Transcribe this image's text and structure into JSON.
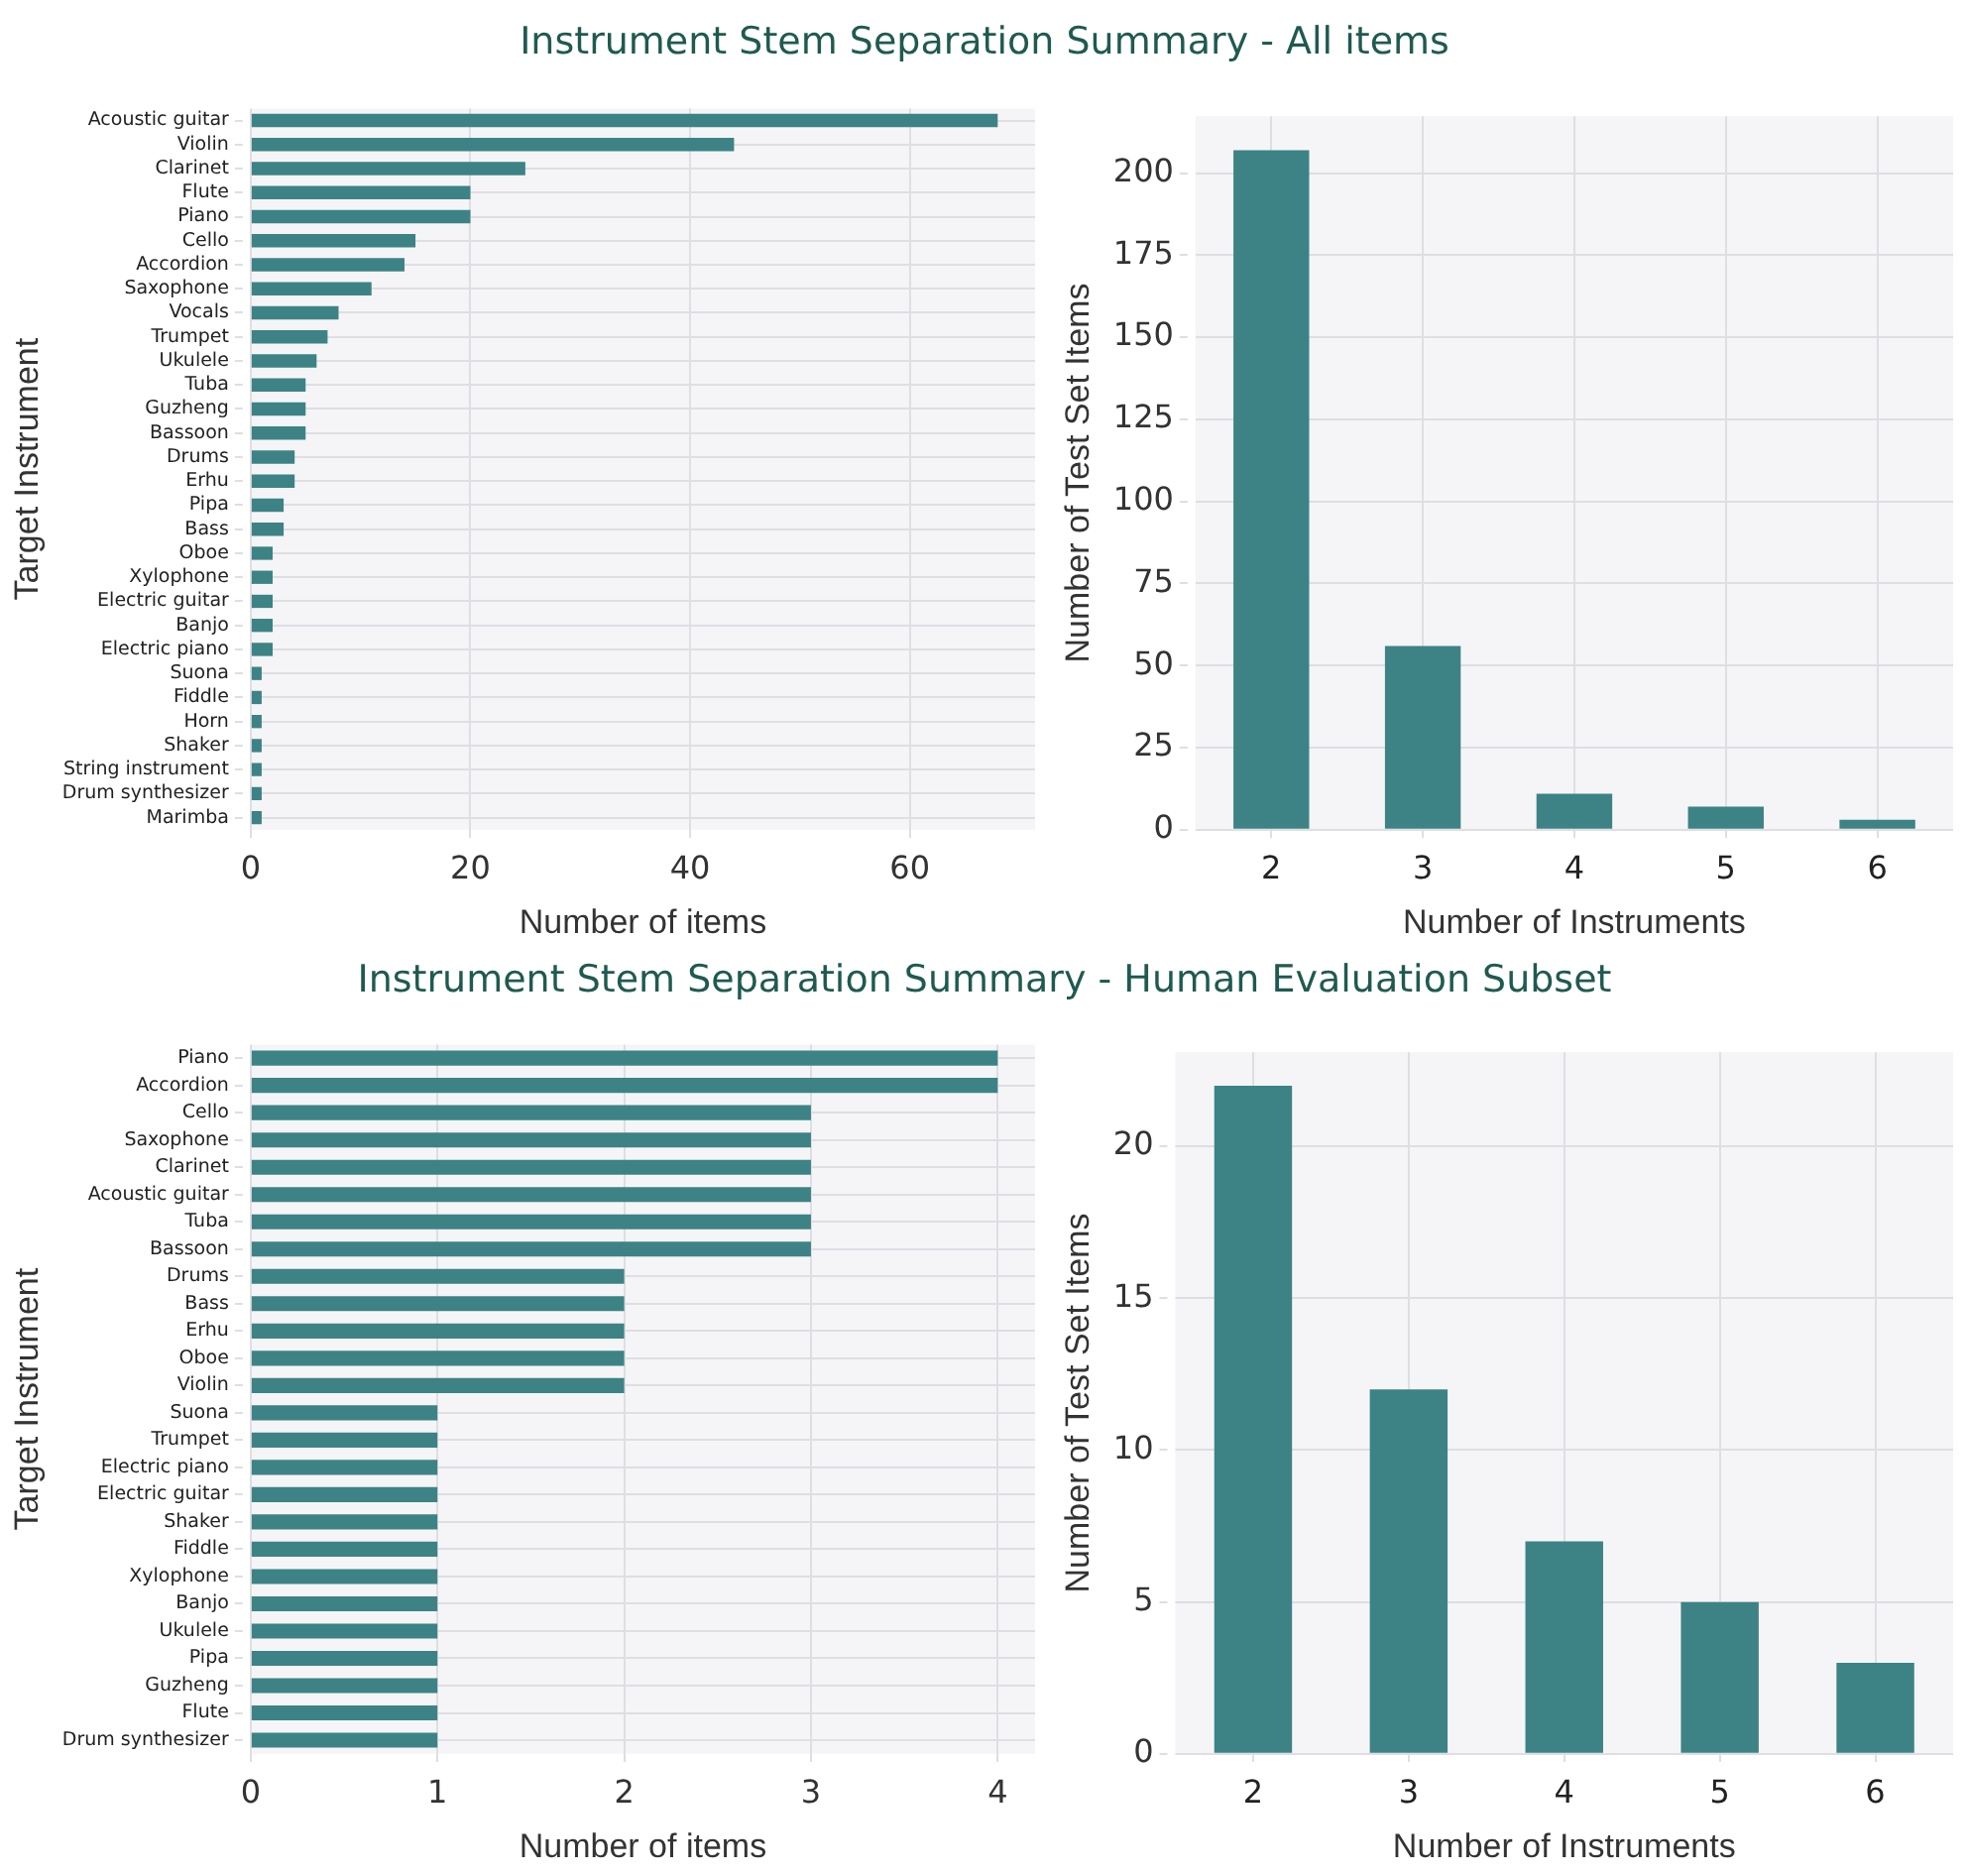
{
  "chart_data": [
    {
      "type": "bar",
      "orientation": "horizontal",
      "title": "Instrument Stem Separation Summary - All items",
      "xlabel": "Number of items",
      "ylabel": "Target Instrument",
      "categories": [
        "Acoustic guitar",
        "Violin",
        "Clarinet",
        "Flute",
        "Piano",
        "Cello",
        "Accordion",
        "Saxophone",
        "Vocals",
        "Trumpet",
        "Ukulele",
        "Tuba",
        "Guzheng",
        "Bassoon",
        "Drums",
        "Erhu",
        "Pipa",
        "Bass",
        "Oboe",
        "Xylophone",
        "Electric guitar",
        "Banjo",
        "Electric piano",
        "Suona",
        "Fiddle",
        "Horn",
        "Shaker",
        "String instrument",
        "Drum synthesizer",
        "Marimba"
      ],
      "values": [
        68,
        44,
        25,
        20,
        20,
        15,
        14,
        11,
        8,
        7,
        6,
        5,
        5,
        5,
        4,
        4,
        3,
        3,
        2,
        2,
        2,
        2,
        2,
        1,
        1,
        1,
        1,
        1,
        1,
        1
      ],
      "color": "#3d8385",
      "xlim": [
        0,
        71.4
      ],
      "xticks": [
        0,
        20,
        40,
        60
      ],
      "grid": true,
      "legend": false
    },
    {
      "type": "bar",
      "xlabel": "Number of Instruments",
      "ylabel": "Number of Test Set Items",
      "categories": [
        "2",
        "3",
        "4",
        "5",
        "6"
      ],
      "values": [
        207,
        56,
        11,
        7,
        3
      ],
      "color": "#3d8385",
      "ylim": [
        0,
        217.35
      ],
      "yticks": [
        0,
        25,
        50,
        75,
        100,
        125,
        150,
        175,
        200
      ],
      "grid": true,
      "legend": false
    },
    {
      "type": "bar",
      "orientation": "horizontal",
      "title": "Instrument Stem Separation Summary - Human Evaluation Subset",
      "xlabel": "Number of items",
      "ylabel": "Target Instrument",
      "categories": [
        "Piano",
        "Accordion",
        "Cello",
        "Saxophone",
        "Clarinet",
        "Acoustic guitar",
        "Tuba",
        "Bassoon",
        "Drums",
        "Bass",
        "Erhu",
        "Oboe",
        "Violin",
        "Suona",
        "Trumpet",
        "Electric piano",
        "Electric guitar",
        "Shaker",
        "Fiddle",
        "Xylophone",
        "Banjo",
        "Ukulele",
        "Pipa",
        "Guzheng",
        "Flute",
        "Drum synthesizer"
      ],
      "values": [
        4,
        4,
        3,
        3,
        3,
        3,
        3,
        3,
        2,
        2,
        2,
        2,
        2,
        1,
        1,
        1,
        1,
        1,
        1,
        1,
        1,
        1,
        1,
        1,
        1,
        1
      ],
      "color": "#3d8385",
      "xlim": [
        0,
        4.2
      ],
      "xticks": [
        0,
        1,
        2,
        3,
        4
      ],
      "grid": true,
      "legend": false
    },
    {
      "type": "bar",
      "xlabel": "Number of Instruments",
      "ylabel": "Number of Test Set Items",
      "categories": [
        "2",
        "3",
        "4",
        "5",
        "6"
      ],
      "values": [
        22,
        12,
        7,
        5,
        3
      ],
      "color": "#3d8385",
      "ylim": [
        0,
        23.1
      ],
      "yticks": [
        0,
        5,
        10,
        15,
        20
      ],
      "grid": true,
      "legend": false
    }
  ]
}
